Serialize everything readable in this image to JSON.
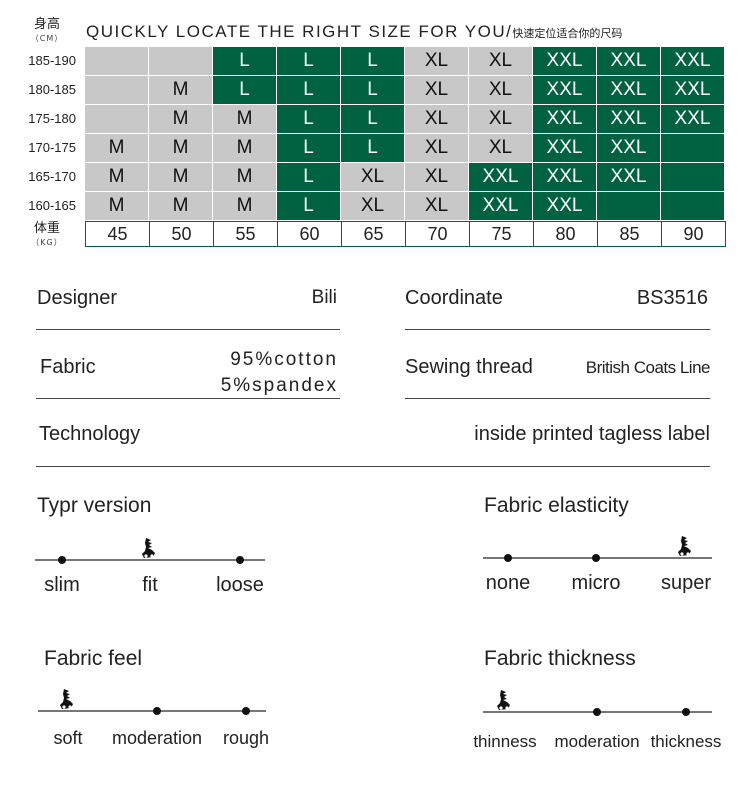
{
  "header": {
    "height_label": "身高",
    "height_unit": "（CM）",
    "title": "QUICKLY LOCATE THE RIGHT SIZE FOR YOU/",
    "title_cn": "快速定位适合你的尺码",
    "weight_label": "体重",
    "weight_unit": "（KG）"
  },
  "colors": {
    "green": "#006241",
    "gray": "#c8c8c8",
    "text_on_green": "#ffffff"
  },
  "size_table": {
    "heights": [
      "185-190",
      "180-185",
      "175-180",
      "170-175",
      "165-170",
      "160-165"
    ],
    "weights": [
      "45",
      "50",
      "55",
      "60",
      "65",
      "70",
      "75",
      "80",
      "85",
      "90"
    ],
    "rows": [
      [
        "",
        "",
        "L",
        "L",
        "L",
        "XL",
        "XL",
        "XXL",
        "XXL",
        "XXL"
      ],
      [
        "",
        "M",
        "L",
        "L",
        "L",
        "XL",
        "XL",
        "XXL",
        "XXL",
        "XXL"
      ],
      [
        "",
        "M",
        "M",
        "L",
        "L",
        "XL",
        "XL",
        "XXL",
        "XXL",
        "XXL"
      ],
      [
        "M",
        "M",
        "M",
        "L",
        "L",
        "XL",
        "XL",
        "XXL",
        "XXL",
        ""
      ],
      [
        "M",
        "M",
        "M",
        "L",
        "XL",
        "XL",
        "XXL",
        "XXL",
        "XXL",
        ""
      ],
      [
        "M",
        "M",
        "M",
        "L",
        "XL",
        "XL",
        "XXL",
        "XXL",
        "",
        ""
      ]
    ]
  },
  "specs": {
    "designer_label": "Designer",
    "designer_value": "Bili",
    "coordinate_label": "Coordinate",
    "coordinate_value": "BS3516",
    "fabric_label": "Fabric",
    "fabric_value_1": "95%cotton",
    "fabric_value_2": "5%spandex",
    "thread_label": "Sewing thread",
    "thread_value": "British Coats Line",
    "technology_label": "Technology",
    "technology_value": "inside printed tagless label"
  },
  "scales": [
    {
      "title": "Typr version",
      "options": [
        "slim",
        "fit",
        "loose"
      ],
      "selected": 1
    },
    {
      "title": "Fabric elasticity",
      "options": [
        "none",
        "micro",
        "super"
      ],
      "selected": 2
    },
    {
      "title": "Fabric feel",
      "options": [
        "soft",
        "moderation",
        "rough"
      ],
      "selected": 0
    },
    {
      "title": "Fabric thickness",
      "options": [
        "thinness",
        "moderation",
        "thickness"
      ],
      "selected": 0
    }
  ],
  "icons": {
    "marker": "figure-marker-icon"
  }
}
